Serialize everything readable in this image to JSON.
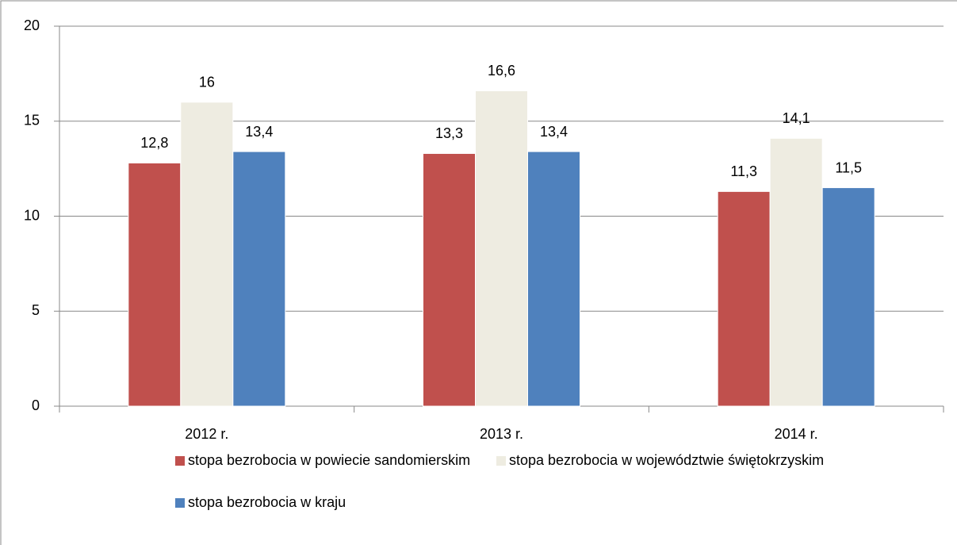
{
  "chart_data": {
    "type": "bar",
    "categories": [
      "2012 r.",
      "2013 r.",
      "2014 r."
    ],
    "series": [
      {
        "name": "stopa bezrobocia w powiecie sandomierskim",
        "color": "#c0504d",
        "values": [
          12.8,
          13.3,
          11.3
        ],
        "value_labels": [
          "12,8",
          "13,3",
          "11,3"
        ]
      },
      {
        "name": "stopa bezrobocia w województwie świętokrzyskim",
        "color": "#eeece1",
        "values": [
          16,
          16.6,
          14.1
        ],
        "value_labels": [
          "16",
          "16,6",
          "14,1"
        ]
      },
      {
        "name": "stopa bezrobocia w kraju",
        "color": "#4f81bd",
        "values": [
          13.4,
          13.4,
          11.5
        ],
        "value_labels": [
          "13,4",
          "13,4",
          "11,5"
        ]
      }
    ],
    "ylim": [
      0,
      20
    ],
    "yticks": [
      0,
      5,
      10,
      15,
      20
    ],
    "grid": true,
    "legend": "bottom"
  }
}
